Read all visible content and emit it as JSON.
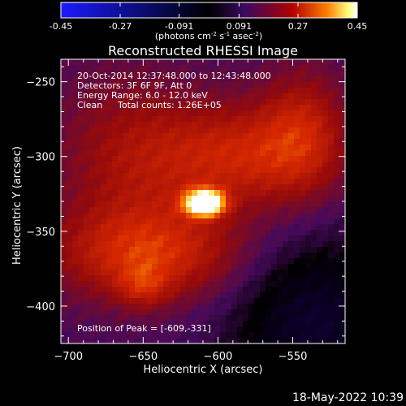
{
  "colorbar": {
    "ticks": [
      "-0.45",
      "-0.27",
      "-0.091",
      "0.091",
      "0.27",
      "0.45"
    ],
    "tick_values": [
      -0.45,
      -0.27,
      -0.091,
      0.091,
      0.27,
      0.45
    ],
    "range": [
      -0.45,
      0.45
    ],
    "unit_main": "(photons cm",
    "unit_exp1": "-2",
    "unit_mid": " s",
    "unit_exp2": "-1",
    "unit_tail": " asec",
    "unit_exp3": "-2",
    "unit_close": ")",
    "colors": [
      "#1a1aff",
      "#000000",
      "#3a0a60",
      "#b00000",
      "#ff8000",
      "#ffff80",
      "#ffffff"
    ]
  },
  "chart_data": {
    "type": "heatmap",
    "title": "Reconstructed RHESSI Image",
    "xlabel": "Heliocentric X (arcsec)",
    "ylabel": "Heliocentric Y (arcsec)",
    "xlim": [
      -705,
      -515
    ],
    "ylim": [
      -425,
      -235
    ],
    "x_ticks": [
      -700,
      -650,
      -600,
      -550
    ],
    "x_tick_labels": [
      "−700",
      "−650",
      "−600",
      "−550"
    ],
    "y_ticks": [
      -250,
      -300,
      -350,
      -400
    ],
    "y_tick_labels": [
      "−250",
      "−300",
      "−350",
      "−400"
    ],
    "peak_position": [
      -609,
      -331
    ],
    "sources": [
      {
        "x": -609,
        "y": -331,
        "amp": 0.45,
        "sx": 9,
        "sy": 6
      },
      {
        "x": -645,
        "y": -365,
        "amp": 0.18,
        "sx": 45,
        "sy": 22
      },
      {
        "x": -585,
        "y": -300,
        "amp": 0.16,
        "sx": 40,
        "sy": 25
      },
      {
        "x": -543,
        "y": -282,
        "amp": 0.12,
        "sx": 20,
        "sy": 30
      },
      {
        "x": -660,
        "y": -300,
        "amp": 0.1,
        "sx": 35,
        "sy": 40
      },
      {
        "x": -650,
        "y": -387,
        "amp": 0.09,
        "sx": 12,
        "sy": 10
      }
    ],
    "background_level": 0.07,
    "negative_region": {
      "x": -535,
      "y": -410,
      "amp": -0.14,
      "sx": 40,
      "sy": 40
    },
    "annotations": {
      "time_range": "20-Oct-2014 12:37:48.000 to 12:43:48.000",
      "detectors": "Detectors: 3F 6F 9F, Att 0",
      "energy": "Energy Range: 6.0 - 12.0 keV",
      "clean": "Clean",
      "counts": "Total counts: 1.26E+05",
      "peak": "Position of Peak = [-609,-331]"
    }
  },
  "footer": {
    "timestamp": "18-May-2022 10:39"
  }
}
